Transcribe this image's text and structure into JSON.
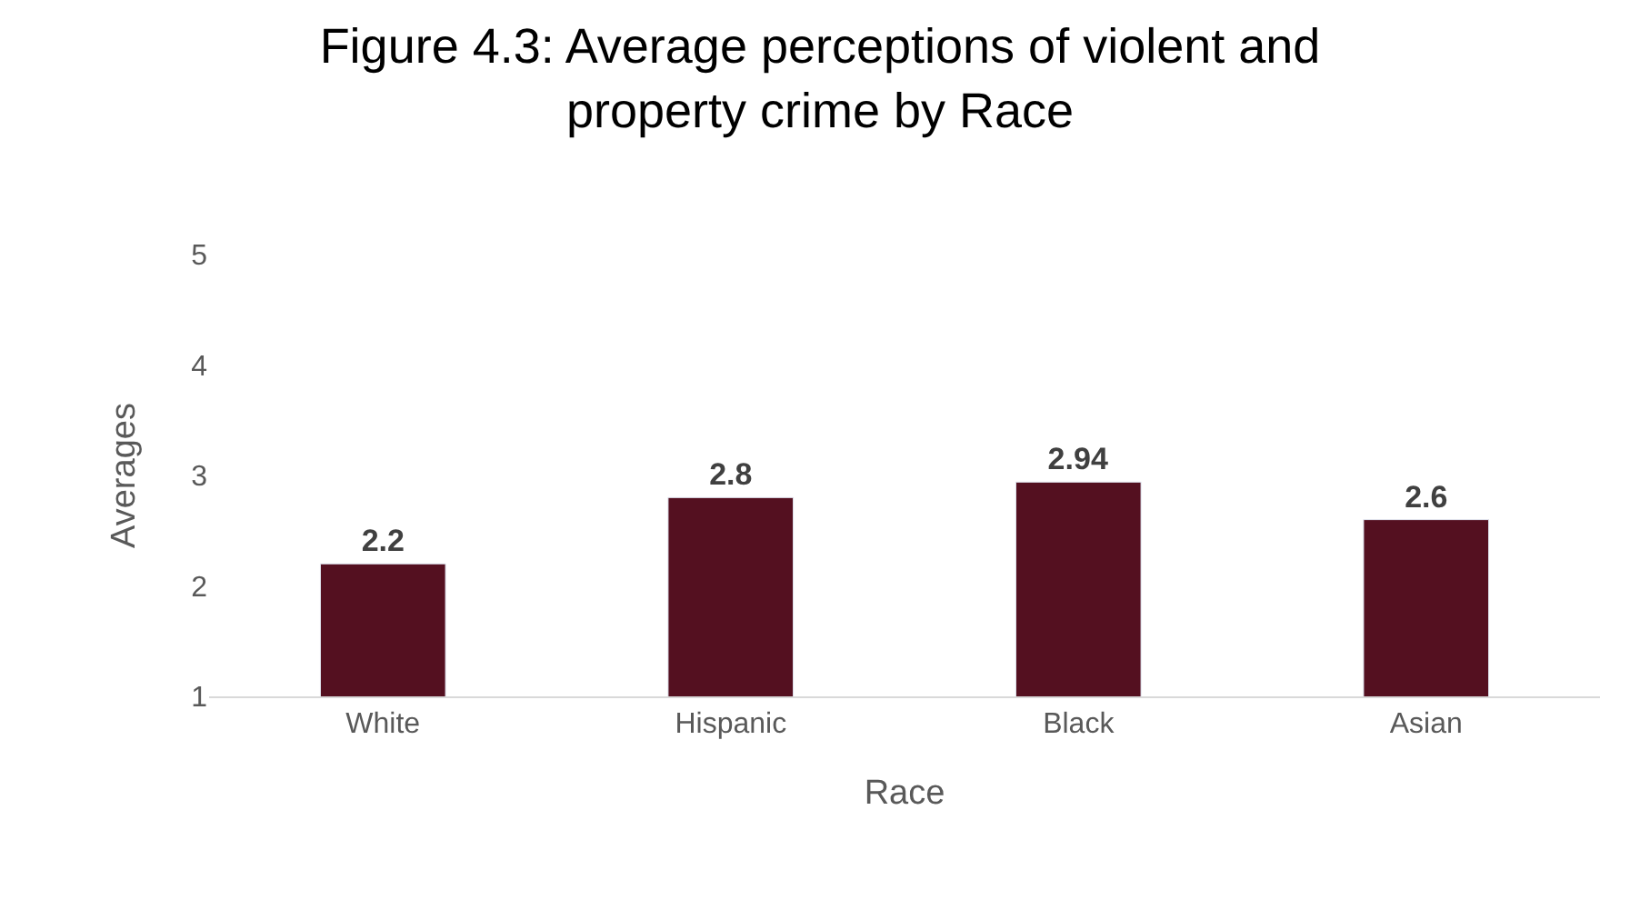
{
  "chart_data": {
    "type": "bar",
    "title": "Figure 4.3: Average perceptions of violent and\nproperty crime by Race",
    "xlabel": "Race",
    "ylabel": "Averages",
    "categories": [
      "White",
      "Hispanic",
      "Black",
      "Asian"
    ],
    "values": [
      2.2,
      2.8,
      2.94,
      2.6
    ],
    "color": "#541020",
    "ylim": [
      1,
      5
    ],
    "yticks": [
      1,
      2,
      3,
      4,
      5
    ],
    "grid": false,
    "legend": false,
    "data_labels": true
  }
}
